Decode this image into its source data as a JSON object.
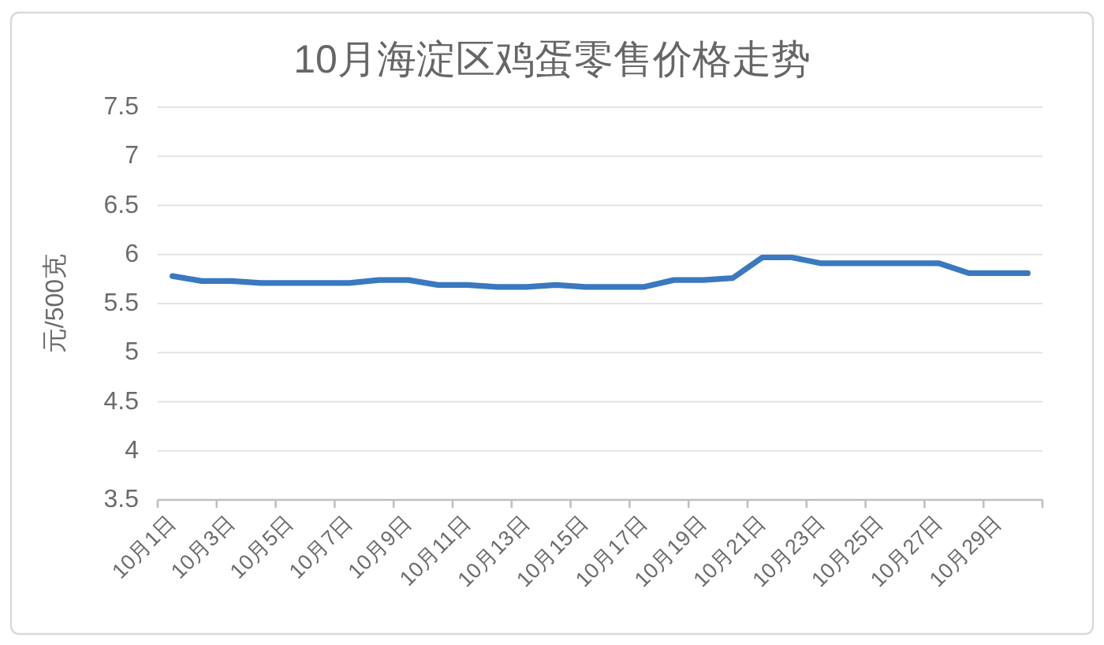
{
  "chart_data": {
    "type": "line",
    "title": "10月海淀区鸡蛋零售价格走势",
    "ylabel": "元/500克",
    "categories": [
      "10月1日",
      null,
      "10月3日",
      null,
      "10月5日",
      null,
      "10月7日",
      null,
      "10月9日",
      null,
      "10月11日",
      null,
      "10月13日",
      null,
      "10月15日",
      null,
      "10月17日",
      null,
      "10月19日",
      null,
      "10月21日",
      null,
      "10月23日",
      null,
      "10月25日",
      null,
      "10月27日",
      null,
      "10月29日",
      null
    ],
    "series": [
      {
        "color": "#3a78c0",
        "values": [
          5.78,
          5.73,
          5.73,
          5.71,
          5.71,
          5.71,
          5.71,
          5.74,
          5.74,
          5.69,
          5.69,
          5.67,
          5.67,
          5.69,
          5.67,
          5.67,
          5.67,
          5.74,
          5.74,
          5.76,
          5.97,
          5.97,
          5.91,
          5.91,
          5.91,
          5.91,
          5.91,
          5.81,
          5.81,
          5.81
        ]
      }
    ],
    "ylim": [
      3.5,
      7.5
    ],
    "yticks": [
      3.5,
      4,
      4.5,
      5,
      5.5,
      6,
      6.5,
      7,
      7.5
    ],
    "grid": "y",
    "line_style": "solid"
  }
}
